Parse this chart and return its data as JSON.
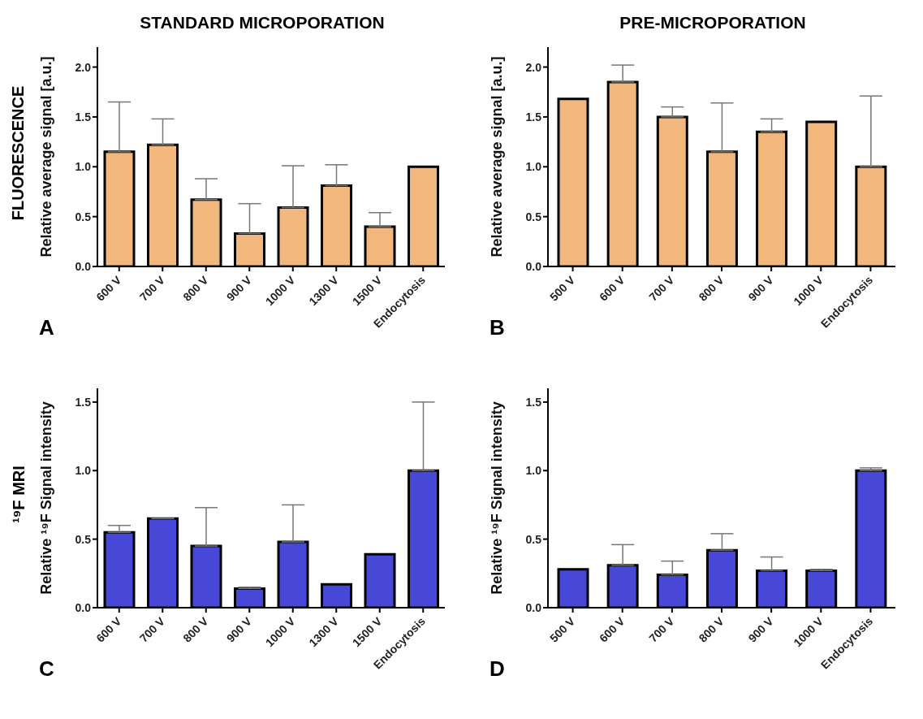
{
  "chart_data": [
    {
      "type": "bar",
      "title": "STANDARD MICROPORATION",
      "ylabel": "Relative average signal [a.u.]",
      "annotations": [
        "FLUORESCENCE",
        "A"
      ],
      "categories": [
        "600 V",
        "700 V",
        "800 V",
        "900 V",
        "1000 V",
        "1300 V",
        "1500 V",
        "Endocytosis"
      ],
      "values": [
        1.15,
        1.22,
        0.67,
        0.33,
        0.59,
        0.81,
        0.4,
        1.0
      ],
      "color": "#f2b77c",
      "errors": [
        [
          1.15,
          1.65
        ],
        [
          1.22,
          1.48
        ],
        [
          0.67,
          0.88
        ],
        [
          0.33,
          0.63
        ],
        [
          0.59,
          1.01
        ],
        [
          0.81,
          1.02
        ],
        [
          0.4,
          0.54
        ],
        null
      ],
      "ylim": [
        0,
        2.2
      ],
      "yticks": [
        {
          "value": 0,
          "label": "0.0"
        },
        {
          "value": 0.5,
          "label": "0.5"
        },
        {
          "value": 1,
          "label": "1.0"
        },
        {
          "value": 1.5,
          "label": "1.5"
        },
        {
          "value": 2,
          "label": "2.0"
        }
      ],
      "grid": false,
      "legend": false
    },
    {
      "type": "bar",
      "title": "PRE-MICROPORATION",
      "ylabel": "Relative average signal [a.u.]",
      "annotations": [
        "B"
      ],
      "categories": [
        "500 V",
        "600 V",
        "700 V",
        "800 V",
        "900 V",
        "1000 V",
        "Endocytosis"
      ],
      "values": [
        1.68,
        1.85,
        1.5,
        1.15,
        1.35,
        1.45,
        1.0
      ],
      "color": "#f2b77c",
      "errors": [
        null,
        [
          1.85,
          2.02
        ],
        [
          1.5,
          1.6
        ],
        [
          1.15,
          1.64
        ],
        [
          1.35,
          1.48
        ],
        null,
        [
          1.0,
          1.71
        ]
      ],
      "ylim": [
        0,
        2.2
      ],
      "yticks": [
        {
          "value": 0,
          "label": "0.0"
        },
        {
          "value": 0.5,
          "label": "0.5"
        },
        {
          "value": 1,
          "label": "1.0"
        },
        {
          "value": 1.5,
          "label": "1.5"
        },
        {
          "value": 2,
          "label": "2.0"
        }
      ],
      "grid": false,
      "legend": false
    },
    {
      "type": "bar",
      "ylabel": "Relative ¹⁹F Signal intensity",
      "annotations": [
        "¹⁹F MRI",
        "C"
      ],
      "categories": [
        "600 V",
        "700 V",
        "800 V",
        "900 V",
        "1000 V",
        "1300 V",
        "1500 V",
        "Endocytosis"
      ],
      "values": [
        0.55,
        0.65,
        0.45,
        0.14,
        0.48,
        0.17,
        0.39,
        1.0
      ],
      "color": "#4848d8",
      "errors": [
        [
          0.55,
          0.6
        ],
        [
          0.65,
          0.65
        ],
        [
          0.45,
          0.73
        ],
        [
          0.14,
          0.15
        ],
        [
          0.48,
          0.75
        ],
        null,
        null,
        [
          1.0,
          1.5
        ]
      ],
      "ylim": [
        0,
        1.6
      ],
      "yticks": [
        {
          "value": 0,
          "label": "0.0"
        },
        {
          "value": 0.5,
          "label": "0.5"
        },
        {
          "value": 1,
          "label": "1.0"
        },
        {
          "value": 1.5,
          "label": "1.5"
        }
      ],
      "grid": false,
      "legend": false
    },
    {
      "type": "bar",
      "ylabel": "Relative ¹⁹F Signal intensity",
      "annotations": [
        "D"
      ],
      "categories": [
        "500 V",
        "600 V",
        "700 V",
        "800 V",
        "900 V",
        "1000 V",
        "Endocytosis"
      ],
      "values": [
        0.28,
        0.31,
        0.24,
        0.42,
        0.27,
        0.27,
        1.0
      ],
      "color": "#4848d8",
      "errors": [
        null,
        [
          0.31,
          0.46
        ],
        [
          0.24,
          0.34
        ],
        [
          0.42,
          0.54
        ],
        [
          0.27,
          0.37
        ],
        [
          0.27,
          0.28
        ],
        [
          1.0,
          1.02
        ]
      ],
      "ylim": [
        0,
        1.6
      ],
      "yticks": [
        {
          "value": 0,
          "label": "0.0"
        },
        {
          "value": 0.5,
          "label": "0.5"
        },
        {
          "value": 1,
          "label": "1.0"
        },
        {
          "value": 1.5,
          "label": "1.5"
        }
      ],
      "grid": false,
      "legend": false
    }
  ]
}
